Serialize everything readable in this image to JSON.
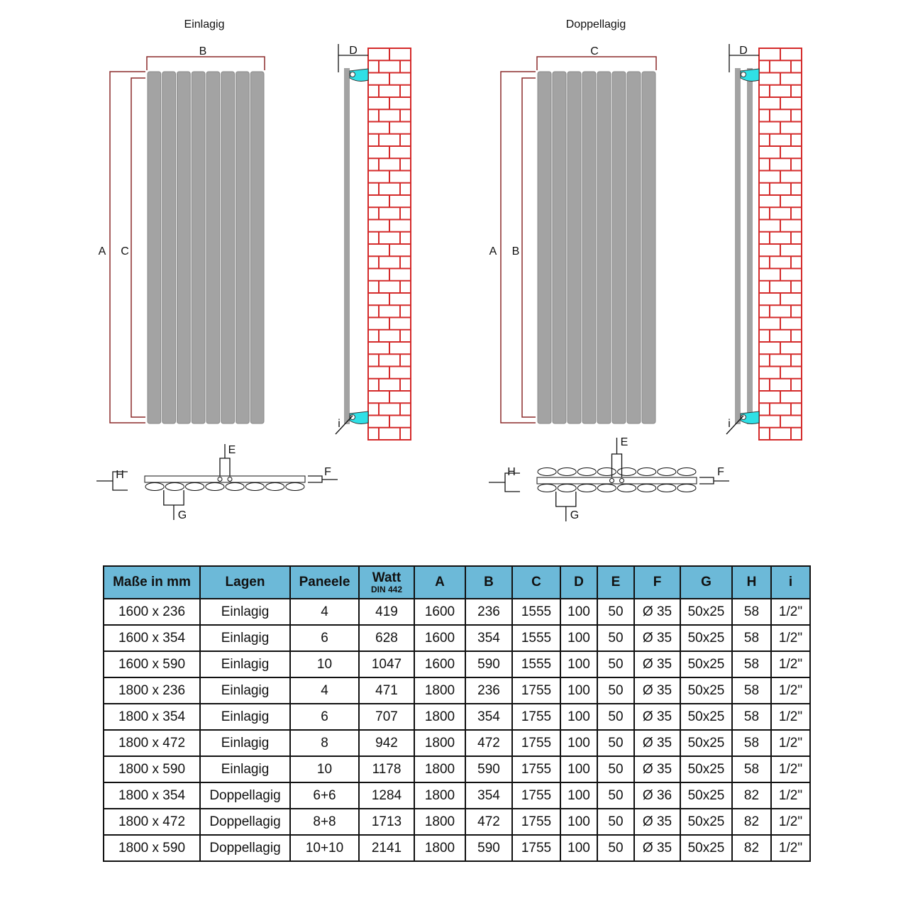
{
  "diagram": {
    "left": {
      "title": "Einlagig",
      "labels": {
        "A": "A",
        "B": "B",
        "C": "C",
        "D": "D",
        "E": "E",
        "F": "F",
        "G": "G",
        "H": "H",
        "i": "i"
      },
      "panels": 8
    },
    "right": {
      "title": "Doppellagig",
      "labels": {
        "A": "A",
        "B": "B",
        "C": "C",
        "D": "D",
        "E": "E",
        "F": "F",
        "G": "G",
        "H": "H",
        "i": "i"
      },
      "panels": 8
    },
    "colors": {
      "panel": "#a3a3a3",
      "bracket": "#8b2a2a",
      "brick": "#d42a2a",
      "mount": "#2fe0e6"
    }
  },
  "table": {
    "headers": [
      "Maße in mm",
      "Lagen",
      "Paneele",
      "Watt",
      "A",
      "B",
      "C",
      "D",
      "E",
      "F",
      "G",
      "H",
      "i"
    ],
    "watt_sub": "DIN 442",
    "rows": [
      [
        "1600 x 236",
        "Einlagig",
        "4",
        "419",
        "1600",
        "236",
        "1555",
        "100",
        "50",
        "Ø 35",
        "50x25",
        "58",
        "1/2\""
      ],
      [
        "1600 x 354",
        "Einlagig",
        "6",
        "628",
        "1600",
        "354",
        "1555",
        "100",
        "50",
        "Ø 35",
        "50x25",
        "58",
        "1/2\""
      ],
      [
        "1600 x 590",
        "Einlagig",
        "10",
        "1047",
        "1600",
        "590",
        "1555",
        "100",
        "50",
        "Ø 35",
        "50x25",
        "58",
        "1/2\""
      ],
      [
        "1800 x 236",
        "Einlagig",
        "4",
        "471",
        "1800",
        "236",
        "1755",
        "100",
        "50",
        "Ø 35",
        "50x25",
        "58",
        "1/2\""
      ],
      [
        "1800 x 354",
        "Einlagig",
        "6",
        "707",
        "1800",
        "354",
        "1755",
        "100",
        "50",
        "Ø 35",
        "50x25",
        "58",
        "1/2\""
      ],
      [
        "1800 x 472",
        "Einlagig",
        "8",
        "942",
        "1800",
        "472",
        "1755",
        "100",
        "50",
        "Ø 35",
        "50x25",
        "58",
        "1/2\""
      ],
      [
        "1800 x 590",
        "Einlagig",
        "10",
        "1178",
        "1800",
        "590",
        "1755",
        "100",
        "50",
        "Ø 35",
        "50x25",
        "58",
        "1/2\""
      ],
      [
        "1800 x 354",
        "Doppellagig",
        "6+6",
        "1284",
        "1800",
        "354",
        "1755",
        "100",
        "50",
        "Ø 36",
        "50x25",
        "82",
        "1/2\""
      ],
      [
        "1800 x 472",
        "Doppellagig",
        "8+8",
        "1713",
        "1800",
        "472",
        "1755",
        "100",
        "50",
        "Ø 35",
        "50x25",
        "82",
        "1/2\""
      ],
      [
        "1800 x 590",
        "Doppellagig",
        "10+10",
        "2141",
        "1800",
        "590",
        "1755",
        "100",
        "50",
        "Ø 35",
        "50x25",
        "82",
        "1/2\""
      ]
    ]
  }
}
